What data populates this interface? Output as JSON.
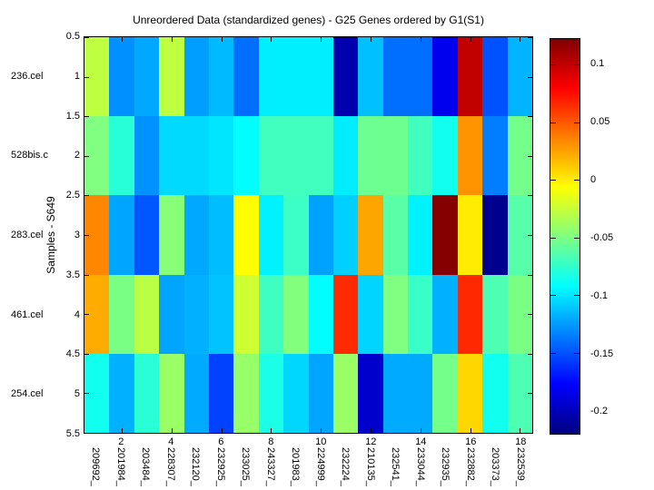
{
  "figure": {
    "title": "Unreordered Data (standardized genes) - G25 Genes ordered by G1(S1)",
    "ylabel": "Samples - S649",
    "background": "#FFFFFF",
    "text_color": "#000000"
  },
  "chart_data": {
    "type": "heatmap",
    "colormap": "jet",
    "clim": [
      -0.22,
      0.122
    ],
    "x_range": [
      0.5,
      18.5
    ],
    "y_range": [
      0.5,
      5.5
    ],
    "grid": "off",
    "x_tick_labels": [
      "2",
      "4",
      "6",
      "8",
      "10",
      "12",
      "14",
      "16",
      "18"
    ],
    "x_tick_values": [
      2,
      4,
      6,
      8,
      10,
      12,
      14,
      16,
      18
    ],
    "y_tick_labels": [
      "0.5",
      "1",
      "1.5",
      "2",
      "2.5",
      "3",
      "3.5",
      "4",
      "4.5",
      "5",
      "5.5"
    ],
    "y_tick_values": [
      0.5,
      1,
      1.5,
      2,
      2.5,
      3,
      3.5,
      4,
      4.5,
      5,
      5.5
    ],
    "columns": [
      "209692_",
      "201984_",
      "203484_",
      "228307_",
      "232120_",
      "232925_",
      "233025_",
      "243327_",
      "201983_",
      "224999_",
      "232224_",
      "210135_",
      "232541_",
      "233044_",
      "232935_",
      "232882_",
      "203373_",
      "232539_"
    ],
    "rows": [
      "236.cel",
      "528bis.c",
      "283.cel",
      "461.cel",
      "254.cel"
    ],
    "values": [
      [
        -0.028,
        -0.129,
        -0.121,
        -0.028,
        -0.124,
        -0.115,
        -0.14,
        -0.097,
        -0.097,
        -0.097,
        -0.205,
        -0.113,
        -0.14,
        -0.14,
        -0.183,
        0.1,
        -0.15,
        -0.117
      ],
      [
        -0.049,
        -0.078,
        -0.128,
        -0.104,
        -0.104,
        -0.1,
        -0.092,
        -0.07,
        -0.07,
        -0.07,
        -0.098,
        -0.055,
        -0.055,
        -0.07,
        -0.086,
        0.03,
        -0.135,
        -0.053
      ],
      [
        0.034,
        -0.122,
        -0.148,
        -0.046,
        -0.121,
        -0.114,
        -0.006,
        -0.096,
        -0.072,
        -0.123,
        -0.108,
        0.024,
        -0.062,
        -0.096,
        0.12,
        0.0,
        -0.215,
        -0.063
      ],
      [
        0.022,
        -0.051,
        -0.029,
        -0.122,
        -0.118,
        -0.112,
        -0.023,
        -0.071,
        -0.048,
        -0.092,
        0.065,
        -0.106,
        -0.049,
        -0.073,
        -0.118,
        0.066,
        -0.066,
        -0.051
      ],
      [
        -0.086,
        -0.118,
        -0.078,
        -0.04,
        -0.12,
        -0.155,
        -0.041,
        -0.083,
        -0.105,
        -0.122,
        -0.04,
        -0.194,
        -0.12,
        -0.12,
        -0.053,
        0.007,
        -0.086,
        -0.066
      ]
    ],
    "colorbar": {
      "position": "right",
      "tick_labels": [
        "0.1",
        "0.05",
        "0",
        "-0.05",
        "-0.1",
        "-0.15",
        "-0.2"
      ],
      "tick_values": [
        0.1,
        0.05,
        0,
        -0.05,
        -0.1,
        -0.15,
        -0.2
      ]
    }
  }
}
